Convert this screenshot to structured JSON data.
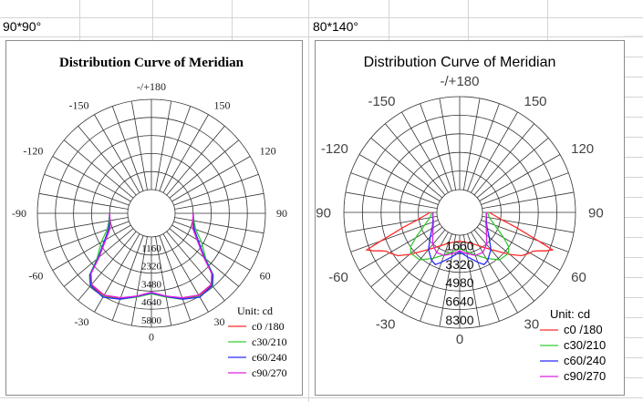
{
  "sheet": {
    "cells": [
      "90*90°",
      "80*140°"
    ]
  },
  "chart_data": [
    {
      "type": "polar-line",
      "title": "Distribution Curve of  Meridian",
      "angle_labels": [
        "-/+180",
        "-150",
        "150",
        "-120",
        "120",
        "-90",
        "90",
        "-60",
        "60",
        "-30",
        "30",
        "0"
      ],
      "radial_ticks": [
        1160,
        2320,
        3480,
        4640,
        5800
      ],
      "rmax": 5800,
      "unit_label": "Unit: cd",
      "legend_position": "bottom-right",
      "series": [
        {
          "name": "c0 /180",
          "color": "#ff2a2a",
          "points": [
            [
              0,
              3600
            ],
            [
              10,
              3900
            ],
            [
              20,
              4300
            ],
            [
              30,
              4600
            ],
            [
              40,
              4500
            ],
            [
              45,
              4000
            ],
            [
              50,
              2900
            ],
            [
              60,
              1900
            ],
            [
              70,
              1350
            ],
            [
              80,
              1200
            ],
            [
              90,
              1160
            ]
          ]
        },
        {
          "name": "c30/210",
          "color": "#33cc33",
          "points": [
            [
              0,
              3650
            ],
            [
              10,
              3950
            ],
            [
              20,
              4350
            ],
            [
              30,
              4650
            ],
            [
              40,
              4600
            ],
            [
              45,
              4100
            ],
            [
              50,
              3050
            ],
            [
              60,
              2200
            ],
            [
              70,
              1500
            ],
            [
              80,
              1250
            ],
            [
              90,
              1160
            ]
          ]
        },
        {
          "name": "c60/240",
          "color": "#2a2aff",
          "points": [
            [
              0,
              3600
            ],
            [
              10,
              3900
            ],
            [
              20,
              4350
            ],
            [
              30,
              4700
            ],
            [
              40,
              4550
            ],
            [
              45,
              4050
            ],
            [
              50,
              2950
            ],
            [
              60,
              1950
            ],
            [
              70,
              1400
            ],
            [
              80,
              1200
            ],
            [
              90,
              1160
            ]
          ]
        },
        {
          "name": "c90/270",
          "color": "#dd22dd",
          "points": [
            [
              0,
              3550
            ],
            [
              10,
              3880
            ],
            [
              20,
              4250
            ],
            [
              30,
              4550
            ],
            [
              40,
              4450
            ],
            [
              45,
              3950
            ],
            [
              50,
              2850
            ],
            [
              60,
              1850
            ],
            [
              70,
              1300
            ],
            [
              80,
              1180
            ],
            [
              90,
              1160
            ]
          ]
        }
      ]
    },
    {
      "type": "polar-line",
      "title": "Distribution Curve of  Meridian",
      "angle_labels": [
        "-/+180",
        "-150",
        "150",
        "-120",
        "120",
        "-90",
        "90",
        "-60",
        "60",
        "-30",
        "30",
        "0"
      ],
      "radial_ticks": [
        1660,
        3320,
        4980,
        6640,
        8300
      ],
      "rmax": 8300,
      "unit_label": "Unit: cd",
      "legend_position": "bottom-right",
      "series": [
        {
          "name": "c0 /180",
          "color": "#ff2a2a",
          "points": [
            [
              0,
              550
            ],
            [
              10,
              650
            ],
            [
              20,
              900
            ],
            [
              30,
              1400
            ],
            [
              40,
              2300
            ],
            [
              50,
              3800
            ],
            [
              55,
              4700
            ],
            [
              60,
              5200
            ],
            [
              62,
              5350
            ],
            [
              64,
              5800
            ],
            [
              66,
              6400
            ],
            [
              68,
              6900
            ],
            [
              70,
              5500
            ],
            [
              75,
              3200
            ],
            [
              80,
              1800
            ],
            [
              90,
              600
            ]
          ]
        },
        {
          "name": "c30/210",
          "color": "#33cc33",
          "points": [
            [
              0,
              1200
            ],
            [
              10,
              1500
            ],
            [
              20,
              2000
            ],
            [
              30,
              2700
            ],
            [
              40,
              3500
            ],
            [
              50,
              3650
            ],
            [
              55,
              3300
            ],
            [
              60,
              2500
            ],
            [
              70,
              1300
            ],
            [
              80,
              650
            ],
            [
              90,
              450
            ]
          ]
        },
        {
          "name": "c60/240",
          "color": "#2a2aff",
          "points": [
            [
              0,
              1500
            ],
            [
              10,
              2000
            ],
            [
              20,
              2700
            ],
            [
              25,
              3100
            ],
            [
              30,
              2950
            ],
            [
              40,
              2300
            ],
            [
              50,
              1400
            ],
            [
              60,
              800
            ],
            [
              70,
              500
            ],
            [
              80,
              400
            ],
            [
              90,
              350
            ]
          ]
        },
        {
          "name": "c90/270",
          "color": "#dd22dd",
          "points": [
            [
              0,
              1400
            ],
            [
              10,
              1700
            ],
            [
              20,
              2050
            ],
            [
              30,
              2100
            ],
            [
              40,
              1700
            ],
            [
              50,
              1100
            ],
            [
              60,
              700
            ],
            [
              70,
              450
            ],
            [
              80,
              380
            ],
            [
              90,
              350
            ]
          ]
        }
      ]
    }
  ]
}
